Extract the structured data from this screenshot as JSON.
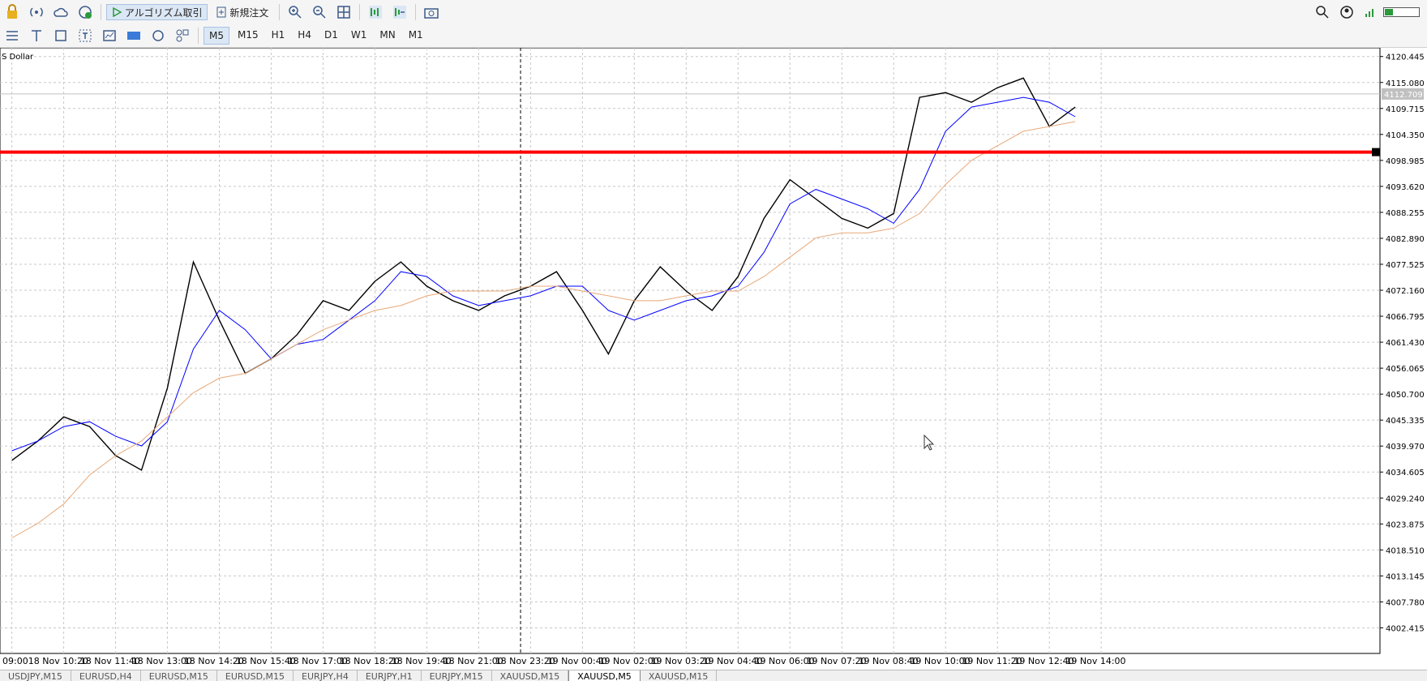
{
  "toolbar": {
    "algo_trading": "アルゴリズム取引",
    "new_order": "新規注文"
  },
  "timeframes": [
    {
      "label": "M5",
      "active": true
    },
    {
      "label": "M15"
    },
    {
      "label": "H1"
    },
    {
      "label": "H4"
    },
    {
      "label": "D1"
    },
    {
      "label": "W1"
    },
    {
      "label": "MN"
    },
    {
      "label": "M1"
    }
  ],
  "tabs": [
    {
      "label": "USDJPY,M15"
    },
    {
      "label": "EURUSD,H4"
    },
    {
      "label": "EURUSD,M15"
    },
    {
      "label": "EURUSD,M15"
    },
    {
      "label": "EURJPY,H4"
    },
    {
      "label": "EURJPY,H1"
    },
    {
      "label": "EURJPY,M15"
    },
    {
      "label": "XAUUSD,M15"
    },
    {
      "label": "XAUUSD,M5",
      "active": true
    },
    {
      "label": "XAUUSD,M15"
    }
  ],
  "chart_data": {
    "type": "line",
    "symbol_label": "S Dollar",
    "categories": [
      "09:00",
      null,
      "18 Nov 10:20",
      null,
      "18 Nov 11:40",
      null,
      "18 Nov 13:00",
      null,
      "18 Nov 14:20",
      null,
      "18 Nov 15:40",
      null,
      "18 Nov 17:00",
      null,
      "18 Nov 18:20",
      null,
      "18 Nov 19:40",
      null,
      "18 Nov 21:00",
      null,
      "18 Nov 23:20",
      null,
      "19 Nov 00:40",
      null,
      "19 Nov 02:00",
      null,
      "19 Nov 03:20",
      null,
      "19 Nov 04:40",
      null,
      "19 Nov 06:00",
      null,
      "19 Nov 07:20",
      null,
      "19 Nov 08:40",
      null,
      "19 Nov 10:00",
      null,
      "19 Nov 11:20",
      null,
      "19 Nov 12:40",
      null,
      "19 Nov 14:00"
    ],
    "series": [
      {
        "color": "#000000",
        "values": [
          4037,
          4041,
          4046,
          4044,
          4038,
          4035,
          4052,
          4078,
          4066,
          4055,
          4058,
          4063,
          4070,
          4068,
          4074,
          4078,
          4073,
          4070,
          4068,
          4071,
          4073,
          4076,
          4068,
          4059,
          4070,
          4077,
          4072,
          4068,
          4075,
          4087,
          4095,
          4091,
          4087,
          4085,
          4088,
          4112,
          4113,
          4111,
          4114,
          4116,
          4106,
          4110,
          null
        ]
      },
      {
        "color": "#0000ff",
        "values": [
          4039,
          4041,
          4044,
          4045,
          4042,
          4040,
          4045,
          4060,
          4068,
          4064,
          4058,
          4061,
          4062,
          4066,
          4070,
          4076,
          4075,
          4071,
          4069,
          4070,
          4071,
          4073,
          4073,
          4068,
          4066,
          4068,
          4070,
          4071,
          4073,
          4080,
          4090,
          4093,
          4091,
          4089,
          4086,
          4093,
          4105,
          4110,
          4111,
          4112,
          4111,
          4108,
          null
        ]
      },
      {
        "color": "#e8a878",
        "values": [
          4021,
          4024,
          4028,
          4034,
          4038,
          4041,
          4046,
          4051,
          4054,
          4055,
          4058,
          4061,
          4064,
          4066,
          4068,
          4069,
          4071,
          4072,
          4072,
          4072,
          4073,
          4073,
          4072,
          4071,
          4070,
          4070,
          4071,
          4072,
          4072,
          4075,
          4079,
          4083,
          4084,
          4084,
          4085,
          4088,
          4094,
          4099,
          4102,
          4105,
          4106,
          4107,
          null
        ]
      }
    ],
    "hline": {
      "value": 4100.7,
      "color": "#ff0000"
    },
    "current_price": 4112.709,
    "ylim": [
      3997.13,
      4122.24
    ],
    "yticks": [
      4120.445,
      {
        "value": 4115.08,
        "label": "4115.080"
      },
      4109.715,
      {
        "value": 4104.35,
        "label": "4104.350"
      },
      4098.985,
      {
        "value": 4093.62,
        "label": "4093.620"
      },
      4088.255,
      {
        "value": 4082.89,
        "label": "4082.890"
      },
      4077.525,
      {
        "value": 4072.16,
        "label": "4072.160"
      },
      4066.795,
      {
        "value": 4061.43,
        "label": "4061.430"
      },
      4056.065,
      {
        "value": 4050.7,
        "label": "4050.700"
      },
      4045.335,
      {
        "value": 4039.97,
        "label": "4039.970"
      },
      4034.605,
      {
        "value": 4029.24,
        "label": "4029.240"
      },
      4023.875,
      {
        "value": 4018.51,
        "label": "4018.510"
      },
      4013.145,
      {
        "value": 4007.78,
        "label": "4007.780"
      },
      4002.415
    ],
    "grid": true
  }
}
